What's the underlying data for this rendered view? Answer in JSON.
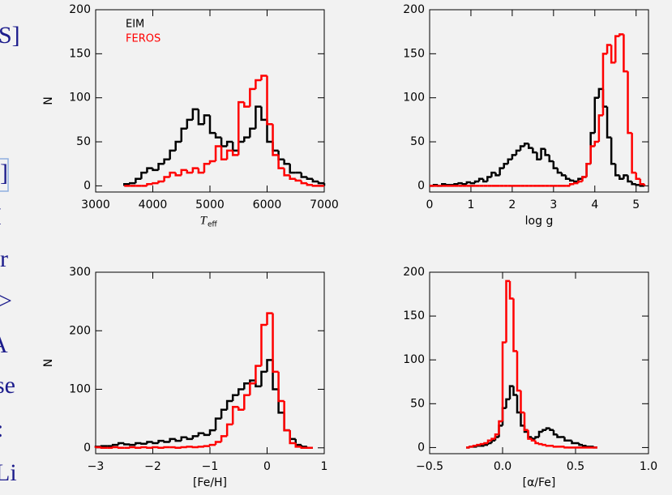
{
  "slide_fragments": [
    "S]",
    "]",
    "I",
    "r",
    ">",
    "A",
    "se",
    ":",
    "Li"
  ],
  "chart_data": [
    {
      "type": "histogram",
      "xlabel": "T",
      "xlabel_sub": "eff",
      "ylabel": "N",
      "xlim": [
        3000,
        7000
      ],
      "ylim": [
        -7,
        200
      ],
      "xticks": [
        3000,
        4000,
        5000,
        6000,
        7000
      ],
      "yticks": [
        0,
        50,
        100,
        150,
        200
      ],
      "legend": "upper left",
      "bins": [
        3500,
        3600,
        3700,
        3800,
        3900,
        4000,
        4100,
        4200,
        4300,
        4400,
        4500,
        4600,
        4700,
        4800,
        4900,
        5000,
        5100,
        5200,
        5300,
        5400,
        5500,
        5600,
        5700,
        5800,
        5900,
        6000,
        6100,
        6200,
        6300,
        6400,
        6500,
        6600,
        6700,
        6800,
        6900,
        7000
      ],
      "series": [
        {
          "name": "EIM",
          "color": "#000000",
          "values": [
            2,
            3,
            8,
            15,
            20,
            18,
            25,
            30,
            40,
            50,
            65,
            75,
            87,
            70,
            80,
            60,
            55,
            45,
            50,
            40,
            50,
            55,
            65,
            90,
            75,
            50,
            40,
            30,
            25,
            15,
            15,
            10,
            8,
            5,
            3
          ]
        },
        {
          "name": "FEROS",
          "color": "#ff0000",
          "values": [
            0,
            0,
            0,
            0,
            2,
            3,
            5,
            10,
            15,
            12,
            18,
            15,
            20,
            15,
            25,
            28,
            45,
            30,
            40,
            35,
            95,
            90,
            110,
            120,
            125,
            70,
            35,
            20,
            12,
            8,
            6,
            3,
            1,
            0,
            0
          ]
        }
      ]
    },
    {
      "type": "histogram",
      "xlabel": "log g",
      "xlim": [
        0,
        5.3
      ],
      "ylim": [
        -7,
        200
      ],
      "xticks": [
        0,
        1,
        2,
        3,
        4,
        5
      ],
      "yticks": [
        0,
        50,
        100,
        150,
        200
      ],
      "bins": [
        0,
        0.1,
        0.2,
        0.3,
        0.4,
        0.5,
        0.6,
        0.7,
        0.8,
        0.9,
        1,
        1.1,
        1.2,
        1.3,
        1.4,
        1.5,
        1.6,
        1.7,
        1.8,
        1.9,
        2,
        2.1,
        2.2,
        2.3,
        2.4,
        2.5,
        2.6,
        2.7,
        2.8,
        2.9,
        3,
        3.1,
        3.2,
        3.3,
        3.4,
        3.5,
        3.6,
        3.7,
        3.8,
        3.9,
        4,
        4.1,
        4.2,
        4.3,
        4.4,
        4.5,
        4.6,
        4.7,
        4.8,
        4.9,
        5,
        5.1,
        5.2
      ],
      "series": [
        {
          "color": "#000000",
          "values": [
            0,
            1,
            0,
            2,
            1,
            1,
            2,
            3,
            2,
            4,
            3,
            5,
            8,
            5,
            10,
            15,
            12,
            20,
            25,
            30,
            35,
            40,
            45,
            48,
            43,
            38,
            30,
            42,
            35,
            28,
            20,
            15,
            12,
            8,
            6,
            5,
            8,
            10,
            25,
            60,
            100,
            110,
            90,
            55,
            25,
            12,
            8,
            12,
            5,
            2,
            1,
            0
          ]
        },
        {
          "color": "#ff0000",
          "values": [
            0,
            0,
            0,
            0,
            0,
            0,
            0,
            0,
            0,
            0,
            0,
            0,
            0,
            0,
            0,
            0,
            0,
            0,
            0,
            0,
            0,
            0,
            0,
            0,
            0,
            0,
            0,
            0,
            0,
            0,
            0,
            0,
            0,
            0,
            2,
            3,
            5,
            10,
            25,
            45,
            50,
            80,
            150,
            160,
            140,
            170,
            172,
            130,
            60,
            15,
            8,
            2
          ]
        }
      ]
    },
    {
      "type": "histogram",
      "xlabel": "[Fe/H]",
      "ylabel": "N",
      "xlim": [
        -3,
        1
      ],
      "ylim": [
        -10,
        300
      ],
      "xticks": [
        {
          "value": -3,
          "label": "−3"
        },
        {
          "value": -2,
          "label": "−2"
        },
        {
          "value": -1,
          "label": "−1"
        },
        0,
        1
      ],
      "yticks": [
        0,
        100,
        200,
        300
      ],
      "bins": [
        -3,
        -2.9,
        -2.8,
        -2.7,
        -2.6,
        -2.5,
        -2.4,
        -2.3,
        -2.2,
        -2.1,
        -2,
        -1.9,
        -1.8,
        -1.7,
        -1.6,
        -1.5,
        -1.4,
        -1.3,
        -1.2,
        -1.1,
        -1,
        -0.9,
        -0.8,
        -0.7,
        -0.6,
        -0.5,
        -0.4,
        -0.3,
        -0.2,
        -0.1,
        0,
        0.1,
        0.2,
        0.3,
        0.4,
        0.5,
        0.6,
        0.7,
        0.8
      ],
      "series": [
        {
          "color": "#000000",
          "values": [
            2,
            3,
            3,
            5,
            8,
            6,
            5,
            8,
            7,
            10,
            8,
            12,
            10,
            15,
            12,
            18,
            15,
            20,
            25,
            22,
            30,
            50,
            65,
            80,
            90,
            100,
            110,
            115,
            105,
            130,
            150,
            100,
            60,
            30,
            15,
            5,
            2,
            0
          ]
        },
        {
          "color": "#ff0000",
          "values": [
            1,
            0,
            0,
            1,
            0,
            0,
            1,
            0,
            1,
            0,
            1,
            0,
            1,
            1,
            0,
            1,
            2,
            1,
            2,
            3,
            5,
            10,
            20,
            40,
            70,
            65,
            90,
            110,
            140,
            210,
            230,
            130,
            80,
            30,
            8,
            2,
            0,
            0
          ]
        }
      ]
    },
    {
      "type": "histogram",
      "xlabel": "[α/Fe]",
      "xlim": [
        -0.5,
        1
      ],
      "ylim": [
        -7,
        200
      ],
      "xticks": [
        {
          "value": -0.5,
          "label": "−0.5"
        },
        {
          "value": 0,
          "label": "0.0"
        },
        0.5,
        {
          "value": 1,
          "label": "1.0"
        }
      ],
      "yticks": [
        0,
        50,
        100,
        150,
        200
      ],
      "bins": [
        -0.25,
        -0.225,
        -0.2,
        -0.175,
        -0.15,
        -0.125,
        -0.1,
        -0.075,
        -0.05,
        -0.025,
        0,
        0.025,
        0.05,
        0.075,
        0.1,
        0.125,
        0.15,
        0.175,
        0.2,
        0.225,
        0.25,
        0.275,
        0.3,
        0.325,
        0.35,
        0.375,
        0.4,
        0.425,
        0.45,
        0.475,
        0.5,
        0.525,
        0.55,
        0.575,
        0.6,
        0.625,
        0.65
      ],
      "series": [
        {
          "color": "#000000",
          "values": [
            0,
            1,
            1,
            2,
            2,
            3,
            5,
            8,
            12,
            25,
            45,
            55,
            70,
            60,
            40,
            25,
            18,
            12,
            10,
            12,
            18,
            20,
            22,
            20,
            15,
            12,
            12,
            8,
            8,
            5,
            5,
            3,
            2,
            1,
            1,
            0
          ]
        },
        {
          "color": "#ff0000",
          "values": [
            0,
            1,
            2,
            3,
            4,
            5,
            8,
            10,
            15,
            30,
            120,
            190,
            170,
            110,
            65,
            40,
            20,
            10,
            8,
            5,
            4,
            3,
            2,
            2,
            1,
            1,
            1,
            0,
            0,
            0,
            0,
            0,
            0,
            0,
            0,
            0
          ]
        }
      ]
    }
  ]
}
